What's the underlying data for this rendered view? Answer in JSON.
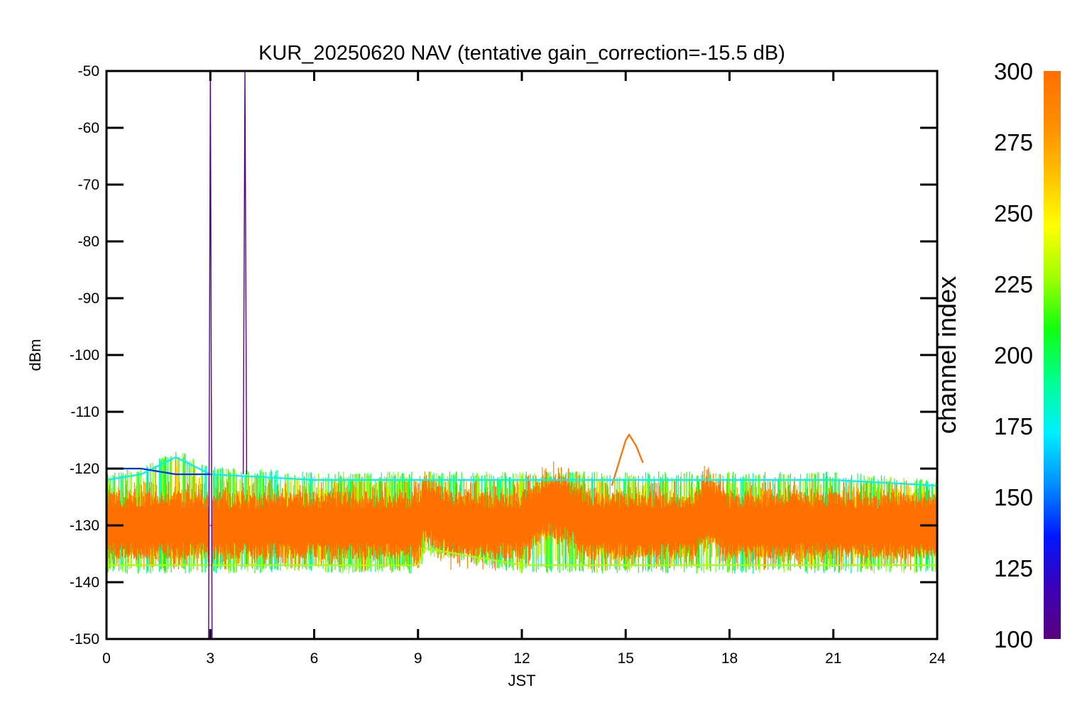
{
  "colors": {
    "background": "#ffffff",
    "axis": "#000000",
    "colormap": [
      "#5a007e",
      "#3a00b8",
      "#0018ff",
      "#0090ff",
      "#00f0ff",
      "#00ff90",
      "#10ff10",
      "#a0ff00",
      "#ffff00",
      "#ffc000",
      "#ff8c00",
      "#ff7000"
    ]
  },
  "chart_data": {
    "type": "line",
    "title": "KUR_20250620 NAV (tentative gain_correction=-15.5 dB)",
    "xlabel": "JST",
    "ylabel": "dBm",
    "xlim": [
      0,
      24
    ],
    "ylim": [
      -150,
      -50
    ],
    "x_ticks": [
      "0",
      "3",
      "6",
      "9",
      "12",
      "15",
      "18",
      "21",
      "24"
    ],
    "y_ticks": [
      "-50",
      "-60",
      "-70",
      "-80",
      "-90",
      "-100",
      "-110",
      "-120",
      "-130",
      "-140",
      "-150"
    ],
    "grid": false,
    "colorbar": {
      "label": "channel index",
      "range": [
        100,
        300
      ],
      "ticks": [
        "100",
        "125",
        "150",
        "175",
        "200",
        "225",
        "250",
        "275",
        "300"
      ]
    },
    "series": [
      {
        "channel_index": 300,
        "x": [
          0,
          1,
          2,
          3,
          4,
          5,
          6,
          7,
          8,
          9,
          9.2,
          10,
          11,
          12,
          12.8,
          13.5,
          14,
          15,
          16,
          17,
          17.3,
          18,
          19,
          20,
          21,
          22,
          23,
          24
        ],
        "y": [
          -130,
          -130,
          -130,
          -130,
          -130,
          -130,
          -130,
          -130,
          -130,
          -130,
          -127,
          -130,
          -130,
          -130,
          -126,
          -128,
          -130,
          -130,
          -130,
          -130,
          -127,
          -130,
          -130,
          -130,
          -130,
          -130,
          -130,
          -130
        ]
      },
      {
        "channel_index": 300,
        "x": [
          14.6,
          14.8,
          15.0,
          15.1,
          15.3,
          15.5
        ],
        "y": [
          -123,
          -119,
          -115,
          -114,
          -116,
          -119
        ]
      },
      {
        "channel_index": 175,
        "x": [
          0,
          1,
          2,
          3,
          6,
          9,
          12,
          15,
          18,
          21,
          24
        ],
        "y": [
          -122,
          -121,
          -118,
          -121,
          -122,
          -122,
          -122,
          -122,
          -122,
          -122,
          -123
        ]
      },
      {
        "channel_index": 140,
        "x": [
          0,
          1,
          2,
          3
        ],
        "y": [
          -120,
          -120,
          -121,
          -121
        ]
      },
      {
        "channel_index": 230,
        "x": [
          0,
          3,
          6,
          9,
          9.2,
          12,
          15,
          18,
          21,
          24
        ],
        "y": [
          -137,
          -137,
          -137,
          -137,
          -134,
          -137,
          -137,
          -137,
          -137,
          -137
        ]
      },
      {
        "channel_index": 103,
        "x": [
          2.95,
          3.0,
          3.05
        ],
        "y": [
          -150,
          -50,
          -150
        ]
      },
      {
        "channel_index": 103,
        "x": [
          3.95,
          4.0,
          4.05
        ],
        "y": [
          -121,
          -50,
          -121
        ]
      }
    ]
  }
}
